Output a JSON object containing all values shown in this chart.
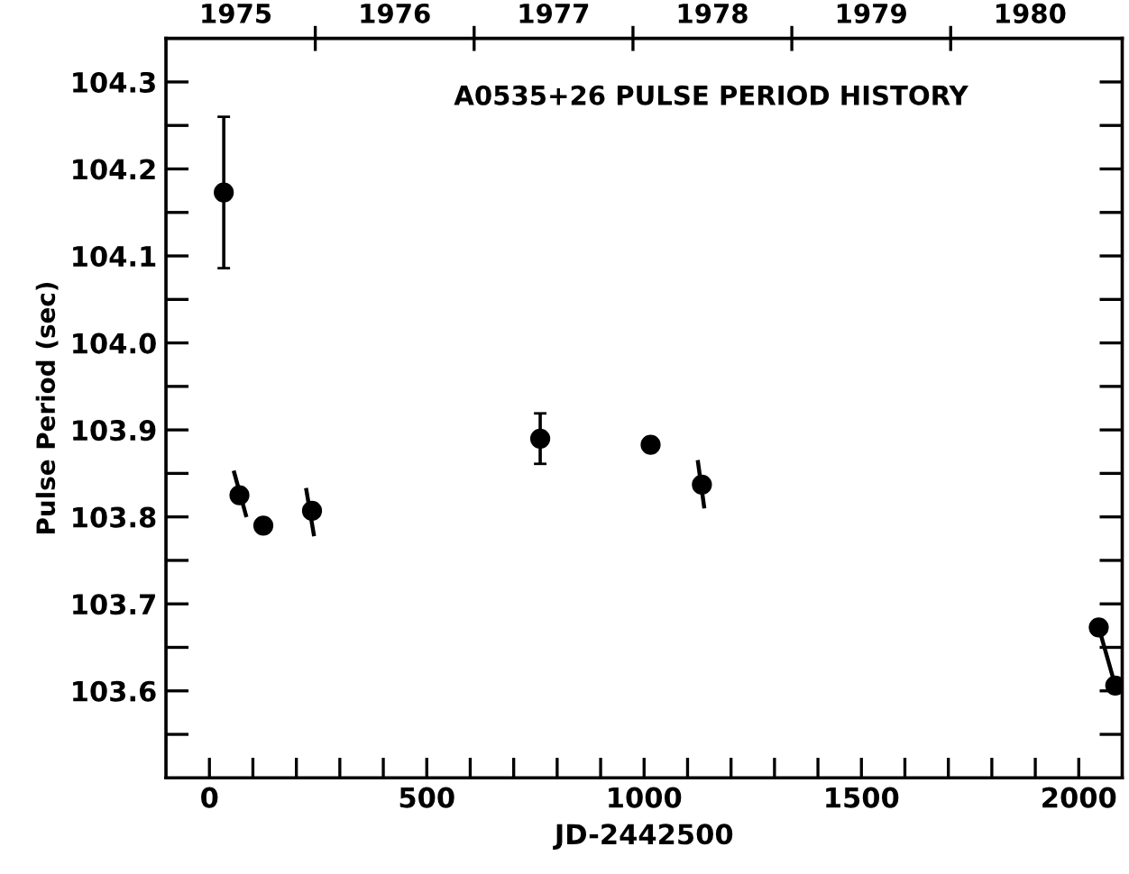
{
  "chart_data": {
    "type": "scatter",
    "title": "A0535+26 PULSE PERIOD HISTORY",
    "xlabel": "JD-2442500",
    "ylabel": "Pulse Period (sec)",
    "marker": "circle",
    "grid": false,
    "legend": false,
    "series": [
      {
        "color": "#000000",
        "x": [
          33,
          69,
          124,
          236,
          761,
          1015,
          1133,
          2046,
          2084
        ],
        "values": [
          104.173,
          103.825,
          103.79,
          103.807,
          103.89,
          103.883,
          103.837,
          103.673,
          103.606
        ],
        "errors": [
          0.087,
          null,
          null,
          null,
          0.029,
          null,
          null,
          null,
          null
        ]
      },
      {
        "type": "line",
        "color": "#000000",
        "marker": "none",
        "line_style": "solid",
        "x": [
          57,
          84,
          123,
          223,
          240,
          1000,
          1124,
          1138,
          1500,
          2046,
          2084
        ],
        "values": [
          103.851,
          103.802,
          null,
          103.831,
          103.78,
          null,
          103.863,
          103.812,
          null,
          103.673,
          103.606
        ]
      }
    ],
    "xlim": [
      -100,
      2100
    ],
    "xticks": [
      0,
      {
        "value": 100,
        "label": null
      },
      {
        "value": 200,
        "label": null
      },
      {
        "value": 300,
        "label": null
      },
      {
        "value": 400,
        "label": null
      },
      500,
      {
        "value": 600,
        "label": null
      },
      {
        "value": 700,
        "label": null
      },
      {
        "value": 800,
        "label": null
      },
      {
        "value": 900,
        "label": null
      },
      1000,
      {
        "value": 1100,
        "label": null
      },
      {
        "value": 1200,
        "label": null
      },
      {
        "value": 1300,
        "label": null
      },
      {
        "value": 1400,
        "label": null
      },
      1500,
      {
        "value": 1600,
        "label": null
      },
      {
        "value": 1700,
        "label": null
      },
      {
        "value": 1800,
        "label": null
      },
      {
        "value": 1900,
        "label": null
      },
      2000
    ],
    "ylim": [
      103.5,
      104.35
    ],
    "yticks": [
      {
        "value": 103.55,
        "label": null
      },
      103.6,
      {
        "value": 103.65,
        "label": null
      },
      103.7,
      {
        "value": 103.75,
        "label": null
      },
      103.8,
      {
        "value": 103.85,
        "label": null
      },
      103.9,
      {
        "value": 103.95,
        "label": null
      },
      {
        "value": 104.0,
        "label": "104.0"
      },
      {
        "value": 104.05,
        "label": null
      },
      104.1,
      {
        "value": 104.15,
        "label": null
      },
      104.2,
      {
        "value": 104.25,
        "label": null
      },
      104.3
    ],
    "x2lim": [
      1975.06,
      1981.08
    ],
    "x2ticks": [
      {
        "value": 1975.5,
        "label": "1975"
      },
      {
        "value": 1976,
        "label": null
      },
      {
        "value": 1976.5,
        "label": "1976"
      },
      {
        "value": 1977,
        "label": null
      },
      {
        "value": 1977.5,
        "label": "1977"
      },
      {
        "value": 1978,
        "label": null
      },
      {
        "value": 1978.5,
        "label": "1978"
      },
      {
        "value": 1979,
        "label": null
      },
      {
        "value": 1979.5,
        "label": "1979"
      },
      {
        "value": 1980,
        "label": null
      },
      {
        "value": 1980.5,
        "label": "1980"
      }
    ]
  }
}
